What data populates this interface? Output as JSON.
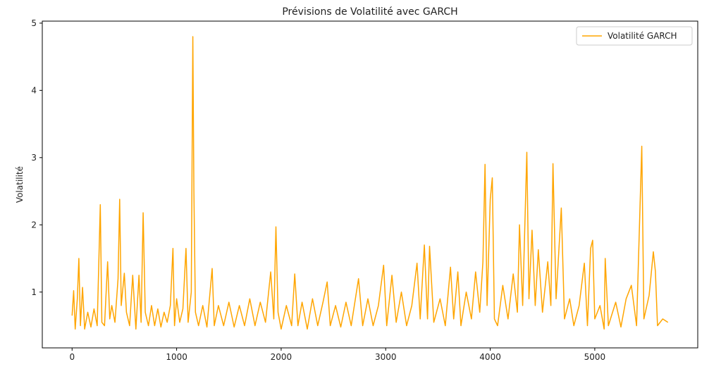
{
  "chart_data": {
    "type": "line",
    "title": "Prévisions de Volatilité avec GARCH",
    "y_label": "Volatilité",
    "legend": "upper right",
    "x": [
      0,
      15,
      30,
      50,
      65,
      80,
      100,
      120,
      150,
      180,
      210,
      240,
      270,
      285,
      310,
      340,
      360,
      380,
      410,
      440,
      455,
      470,
      500,
      520,
      550,
      580,
      610,
      640,
      660,
      680,
      700,
      730,
      760,
      790,
      820,
      850,
      880,
      910,
      940,
      965,
      980,
      1000,
      1030,
      1060,
      1090,
      1110,
      1140,
      1155,
      1165,
      1180,
      1210,
      1250,
      1290,
      1340,
      1360,
      1400,
      1450,
      1500,
      1550,
      1600,
      1650,
      1700,
      1750,
      1800,
      1850,
      1900,
      1930,
      1950,
      1970,
      2000,
      2050,
      2100,
      2130,
      2160,
      2200,
      2250,
      2300,
      2350,
      2400,
      2440,
      2470,
      2520,
      2570,
      2620,
      2670,
      2740,
      2780,
      2830,
      2880,
      2930,
      2980,
      3010,
      3060,
      3100,
      3150,
      3200,
      3250,
      3300,
      3330,
      3370,
      3400,
      3420,
      3460,
      3520,
      3570,
      3620,
      3650,
      3690,
      3720,
      3770,
      3820,
      3860,
      3900,
      3930,
      3950,
      3970,
      4000,
      4020,
      4040,
      4070,
      4120,
      4170,
      4220,
      4260,
      4280,
      4310,
      4350,
      4370,
      4400,
      4430,
      4460,
      4500,
      4550,
      4580,
      4600,
      4630,
      4680,
      4710,
      4760,
      4800,
      4850,
      4900,
      4930,
      4960,
      4980,
      5000,
      5050,
      5090,
      5100,
      5130,
      5200,
      5250,
      5300,
      5350,
      5400,
      5450,
      5470,
      5520,
      5560,
      5580,
      5600,
      5650,
      5700
    ],
    "series": [
      {
        "name": "Volatilité GARCH",
        "color": "#ffa500",
        "values": [
          0.65,
          1.02,
          0.45,
          0.9,
          1.5,
          0.5,
          1.07,
          0.45,
          0.7,
          0.48,
          0.75,
          0.5,
          2.3,
          0.55,
          0.5,
          1.45,
          0.6,
          0.8,
          0.55,
          1.2,
          2.38,
          0.8,
          1.28,
          0.7,
          0.5,
          1.25,
          0.45,
          1.25,
          0.55,
          2.18,
          0.7,
          0.5,
          0.8,
          0.5,
          0.75,
          0.48,
          0.7,
          0.55,
          0.8,
          1.65,
          0.5,
          0.9,
          0.55,
          0.75,
          1.65,
          0.55,
          1.0,
          4.8,
          2.5,
          0.7,
          0.5,
          0.8,
          0.48,
          1.35,
          0.5,
          0.8,
          0.5,
          0.85,
          0.48,
          0.8,
          0.5,
          0.9,
          0.5,
          0.85,
          0.55,
          1.3,
          0.6,
          1.97,
          0.7,
          0.45,
          0.8,
          0.5,
          1.27,
          0.5,
          0.85,
          0.45,
          0.9,
          0.5,
          0.85,
          1.15,
          0.5,
          0.8,
          0.48,
          0.85,
          0.5,
          1.2,
          0.5,
          0.9,
          0.5,
          0.8,
          1.4,
          0.5,
          1.25,
          0.55,
          1.0,
          0.5,
          0.8,
          1.43,
          0.6,
          1.7,
          0.6,
          1.68,
          0.55,
          0.9,
          0.5,
          1.37,
          0.6,
          1.3,
          0.5,
          1.0,
          0.6,
          1.3,
          0.7,
          1.45,
          2.9,
          0.8,
          2.38,
          2.7,
          0.6,
          0.5,
          1.1,
          0.6,
          1.27,
          0.7,
          2.0,
          0.8,
          3.08,
          0.9,
          1.92,
          0.8,
          1.63,
          0.7,
          1.45,
          0.8,
          2.91,
          0.9,
          2.25,
          0.6,
          0.9,
          0.5,
          0.8,
          1.43,
          0.5,
          1.65,
          1.77,
          0.6,
          0.8,
          0.45,
          1.5,
          0.5,
          0.85,
          0.48,
          0.9,
          1.1,
          0.5,
          3.17,
          0.6,
          0.95,
          1.6,
          1.31,
          0.5,
          0.6,
          0.55
        ]
      }
    ],
    "xlim": [
      -285,
      5985
    ],
    "ylim": [
      0.17,
      5.03
    ],
    "xticks": [
      0,
      1000,
      2000,
      3000,
      4000,
      5000
    ],
    "yticks": [
      1,
      2,
      3,
      4,
      5
    ]
  }
}
